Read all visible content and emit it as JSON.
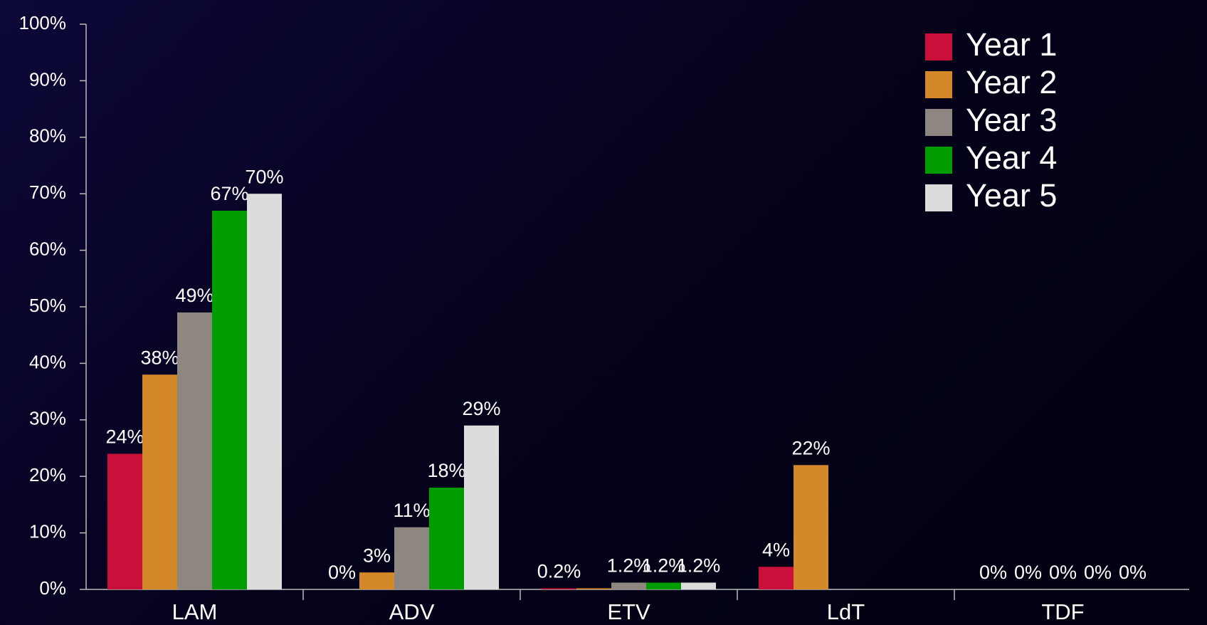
{
  "chart_data": {
    "type": "bar",
    "categories": [
      "LAM",
      "ADV",
      "ETV",
      "LdT",
      "TDF"
    ],
    "series": [
      {
        "name": "Year 1",
        "color": "#c8103a",
        "values": [
          24,
          0,
          0.2,
          4,
          0
        ],
        "value_labels": [
          "24%",
          "0%",
          "0.2%",
          "4%",
          "0%"
        ]
      },
      {
        "name": "Year 2",
        "color": "#d4882a",
        "values": [
          38,
          3,
          0.2,
          22,
          0
        ],
        "value_labels": [
          "38%",
          "3%",
          null,
          "22%",
          "0%"
        ]
      },
      {
        "name": "Year 3",
        "color": "#8e8680",
        "values": [
          49,
          11,
          1.2,
          null,
          0
        ],
        "value_labels": [
          "49%",
          "11%",
          "1.2%",
          null,
          "0%"
        ]
      },
      {
        "name": "Year 4",
        "color": "#009c00",
        "values": [
          67,
          18,
          1.2,
          null,
          0
        ],
        "value_labels": [
          "67%",
          "18%",
          "1.2%",
          null,
          "0%"
        ]
      },
      {
        "name": "Year 5",
        "color": "#dcdcdc",
        "values": [
          70,
          29,
          1.2,
          null,
          0
        ],
        "value_labels": [
          "70%",
          "29%",
          "1.2%",
          null,
          "0%"
        ]
      }
    ],
    "ylim": [
      0,
      100
    ],
    "yticks": [
      {
        "value": 0,
        "label": "0%"
      },
      {
        "value": 10,
        "label": "10%"
      },
      {
        "value": 20,
        "label": "20%"
      },
      {
        "value": 30,
        "label": "30%"
      },
      {
        "value": 40,
        "label": "40%"
      },
      {
        "value": 50,
        "label": "50%"
      },
      {
        "value": 60,
        "label": "60%"
      },
      {
        "value": 70,
        "label": "70%"
      },
      {
        "value": 80,
        "label": "80%"
      },
      {
        "value": 90,
        "label": "90%"
      },
      {
        "value": 100,
        "label": "100%"
      }
    ],
    "legend": "upper right"
  }
}
